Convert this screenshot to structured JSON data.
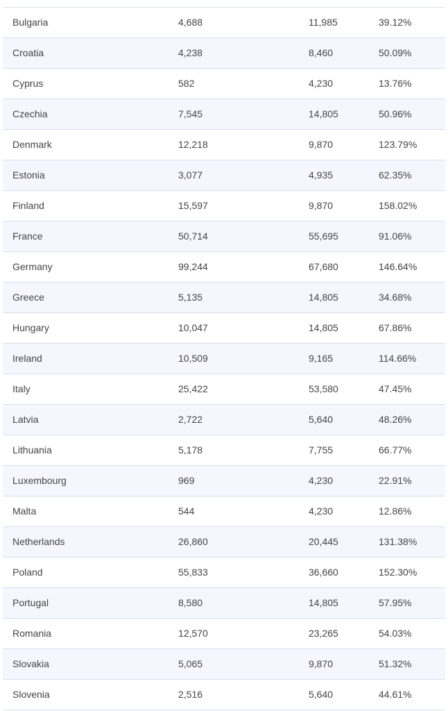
{
  "table": {
    "rows": [
      {
        "country": "Bulgaria",
        "col2": "4,688",
        "col3": "11,985",
        "col4": "39.12%"
      },
      {
        "country": "Croatia",
        "col2": "4,238",
        "col3": "8,460",
        "col4": "50.09%"
      },
      {
        "country": "Cyprus",
        "col2": "582",
        "col3": "4,230",
        "col4": "13.76%"
      },
      {
        "country": "Czechia",
        "col2": "7,545",
        "col3": "14,805",
        "col4": "50.96%"
      },
      {
        "country": "Denmark",
        "col2": "12,218",
        "col3": "9,870",
        "col4": "123.79%"
      },
      {
        "country": "Estonia",
        "col2": "3,077",
        "col3": "4,935",
        "col4": "62.35%"
      },
      {
        "country": "Finland",
        "col2": "15,597",
        "col3": "9,870",
        "col4": "158.02%"
      },
      {
        "country": "France",
        "col2": "50,714",
        "col3": "55,695",
        "col4": "91.06%"
      },
      {
        "country": "Germany",
        "col2": "99,244",
        "col3": "67,680",
        "col4": "146.64%"
      },
      {
        "country": "Greece",
        "col2": "5,135",
        "col3": "14,805",
        "col4": "34.68%"
      },
      {
        "country": "Hungary",
        "col2": "10,047",
        "col3": "14,805",
        "col4": "67.86%"
      },
      {
        "country": "Ireland",
        "col2": "10,509",
        "col3": "9,165",
        "col4": "114.66%"
      },
      {
        "country": "Italy",
        "col2": "25,422",
        "col3": "53,580",
        "col4": "47.45%"
      },
      {
        "country": "Latvia",
        "col2": "2,722",
        "col3": "5,640",
        "col4": "48.26%"
      },
      {
        "country": "Lithuania",
        "col2": "5,178",
        "col3": "7,755",
        "col4": "66.77%"
      },
      {
        "country": "Luxembourg",
        "col2": "969",
        "col3": "4,230",
        "col4": "22.91%"
      },
      {
        "country": "Malta",
        "col2": "544",
        "col3": "4,230",
        "col4": "12.86%"
      },
      {
        "country": "Netherlands",
        "col2": "26,860",
        "col3": "20,445",
        "col4": "131.38%"
      },
      {
        "country": "Poland",
        "col2": "55,833",
        "col3": "36,660",
        "col4": "152.30%"
      },
      {
        "country": "Portugal",
        "col2": "8,580",
        "col3": "14,805",
        "col4": "57.95%"
      },
      {
        "country": "Romania",
        "col2": "12,570",
        "col3": "23,265",
        "col4": "54.03%"
      },
      {
        "country": "Slovakia",
        "col2": "5,065",
        "col3": "9,870",
        "col4": "51.32%"
      },
      {
        "country": "Slovenia",
        "col2": "2,516",
        "col3": "5,640",
        "col4": "44.61%"
      }
    ]
  }
}
